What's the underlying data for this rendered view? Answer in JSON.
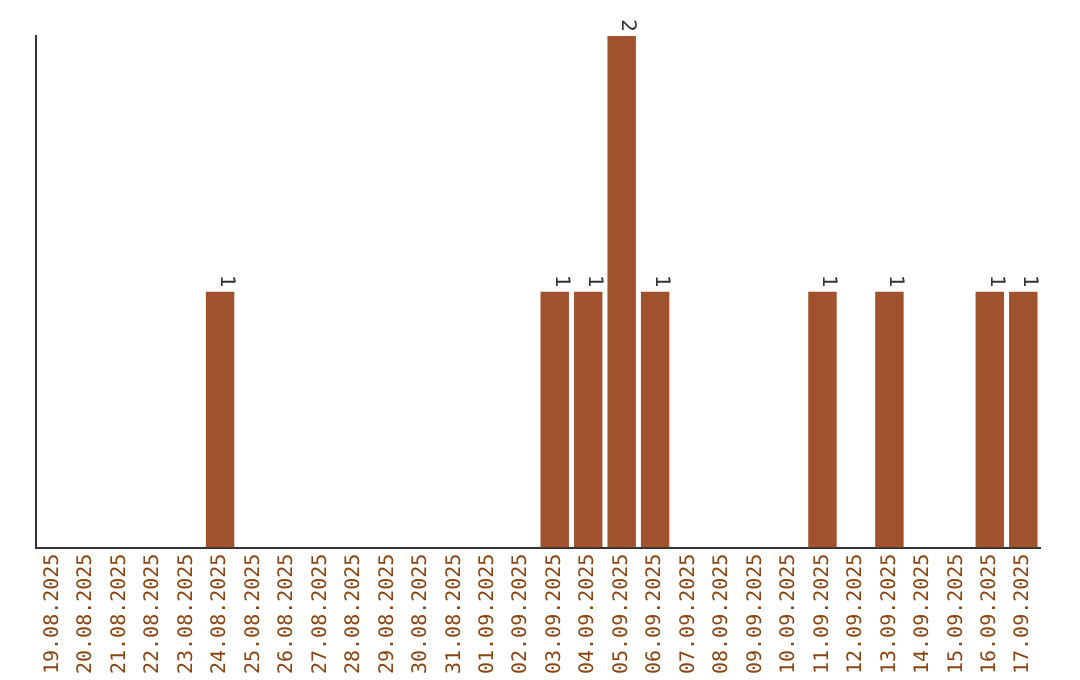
{
  "chart_data": {
    "type": "bar",
    "categories": [
      "19.08.2025",
      "20.08.2025",
      "21.08.2025",
      "22.08.2025",
      "23.08.2025",
      "24.08.2025",
      "25.08.2025",
      "26.08.2025",
      "27.08.2025",
      "28.08.2025",
      "29.08.2025",
      "30.08.2025",
      "31.08.2025",
      "01.09.2025",
      "02.09.2025",
      "03.09.2025",
      "04.09.2025",
      "05.09.2025",
      "06.09.2025",
      "07.09.2025",
      "08.09.2025",
      "09.09.2025",
      "10.09.2025",
      "11.09.2025",
      "12.09.2025",
      "13.09.2025",
      "14.09.2025",
      "15.09.2025",
      "16.09.2025",
      "17.09.2025"
    ],
    "values": [
      0,
      0,
      0,
      0,
      0,
      1,
      0,
      0,
      0,
      0,
      0,
      0,
      0,
      0,
      0,
      1,
      1,
      2,
      1,
      0,
      0,
      0,
      0,
      1,
      0,
      1,
      0,
      0,
      1,
      1
    ],
    "value_labels": [
      null,
      null,
      null,
      null,
      null,
      "1",
      null,
      null,
      null,
      null,
      null,
      null,
      null,
      null,
      null,
      "1",
      "1",
      "2",
      "1",
      null,
      null,
      null,
      null,
      "1",
      null,
      "1",
      null,
      null,
      "1",
      "1"
    ],
    "color": "#a0522d",
    "grid": false,
    "legend": false
  }
}
